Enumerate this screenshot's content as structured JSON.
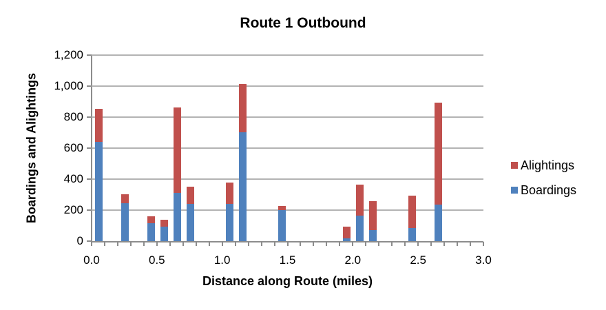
{
  "chart_data": {
    "type": "bar",
    "stacked": true,
    "title": "Route 1 Outbound",
    "xlabel": "Distance along Route (miles)",
    "ylabel": "Boardings and Alightings",
    "xlim": [
      0.0,
      3.0
    ],
    "ylim": [
      0,
      1200
    ],
    "x_ticks": [
      "0.0",
      "0.5",
      "1.0",
      "1.5",
      "2.0",
      "2.5",
      "3.0"
    ],
    "y_ticks": [
      "0",
      "200",
      "400",
      "600",
      "800",
      "1,000",
      "1,200"
    ],
    "grid": true,
    "legend_position": "right",
    "x": [
      0.0,
      0.2,
      0.4,
      0.5,
      0.6,
      0.7,
      1.0,
      1.1,
      1.4,
      1.9,
      2.0,
      2.1,
      2.4,
      2.6
    ],
    "series": [
      {
        "name": "Boardings",
        "color": "#4f81bd",
        "values": [
          640,
          244,
          116,
          93,
          311,
          240,
          240,
          702,
          200,
          18,
          164,
          71,
          84,
          236
        ]
      },
      {
        "name": "Alightings",
        "color": "#c0504d",
        "values": [
          212,
          58,
          44,
          45,
          553,
          111,
          140,
          311,
          27,
          75,
          200,
          187,
          209,
          657
        ]
      }
    ]
  },
  "legend": [
    {
      "label": "Alightings",
      "color": "#c0504d"
    },
    {
      "label": "Boardings",
      "color": "#4f81bd"
    }
  ]
}
